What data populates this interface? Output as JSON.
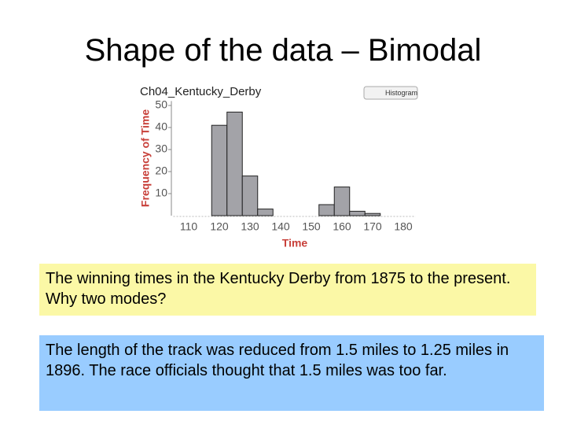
{
  "title": "Shape of the data – Bimodal",
  "chart_data": {
    "type": "histogram",
    "title": "Ch04_Kentucky_Derby",
    "legend": "Histogram",
    "x_label": "Time",
    "y_label": "Frequency of Time",
    "bins": [
      117.5,
      122.5,
      127.5,
      132.5,
      137.5,
      142.5,
      147.5,
      152.5,
      157.5,
      162.5,
      167.5,
      172.5
    ],
    "values": [
      41,
      47,
      18,
      3,
      0,
      0,
      0,
      5,
      13,
      2,
      1
    ],
    "color": "#a3a3a8",
    "xlim": [
      105,
      184
    ],
    "xticks": [
      110,
      120,
      130,
      140,
      150,
      160,
      170,
      180
    ],
    "ylim": [
      0,
      52
    ],
    "yticks": [
      10,
      20,
      30,
      40,
      50
    ]
  },
  "note_question": "The winning times in the Kentucky Derby from 1875 to the present. Why two modes?",
  "note_answer": "The length of the track was reduced from 1.5 miles to 1.25 miles in 1896. The race officials thought that 1.5 miles was too far."
}
